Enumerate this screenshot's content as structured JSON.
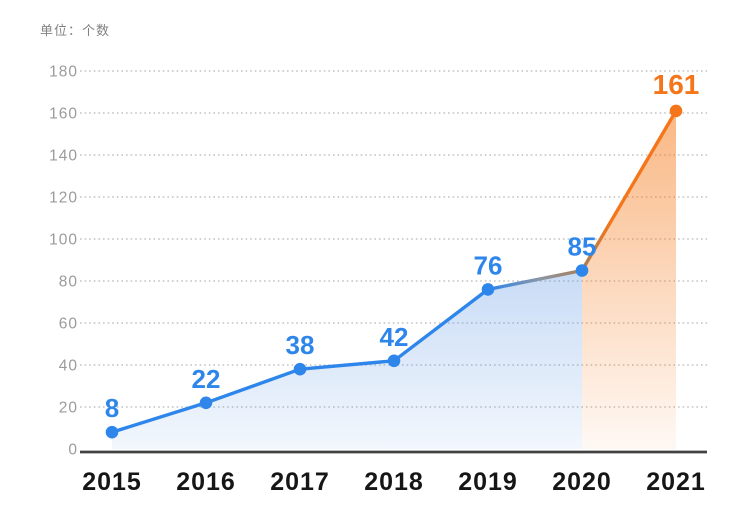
{
  "chart_data": {
    "type": "line",
    "title": "",
    "unit_label": "单位：个数",
    "categories": [
      "2015",
      "2016",
      "2017",
      "2018",
      "2019",
      "2020",
      "2021"
    ],
    "values": [
      8,
      22,
      38,
      42,
      76,
      85,
      161
    ],
    "highlight_index": 6,
    "ylim": [
      0,
      180
    ],
    "y_ticks": [
      0,
      20,
      40,
      60,
      80,
      100,
      120,
      140,
      160,
      180
    ],
    "grid": "dotted-horizontal",
    "legend": "none",
    "area_fill": "gradient-under-line",
    "colors": {
      "line_blue": "#2E86EB",
      "line_orange": "#F5761A",
      "blend_gray": "#8C96A4",
      "blend_brown": "#A97E57",
      "marker_blue": "#2E86EB",
      "marker_orange": "#F5761A",
      "label_blue": "#2E86EB",
      "label_orange": "#F5761A",
      "area_blue": "#5D97E4",
      "area_orange": "#F57D20",
      "grid_line": "#C2C2C2",
      "axis_line": "#424242",
      "tick_text": "#9B9B9B",
      "year_text": "#161616",
      "unit_text": "#828282"
    }
  }
}
